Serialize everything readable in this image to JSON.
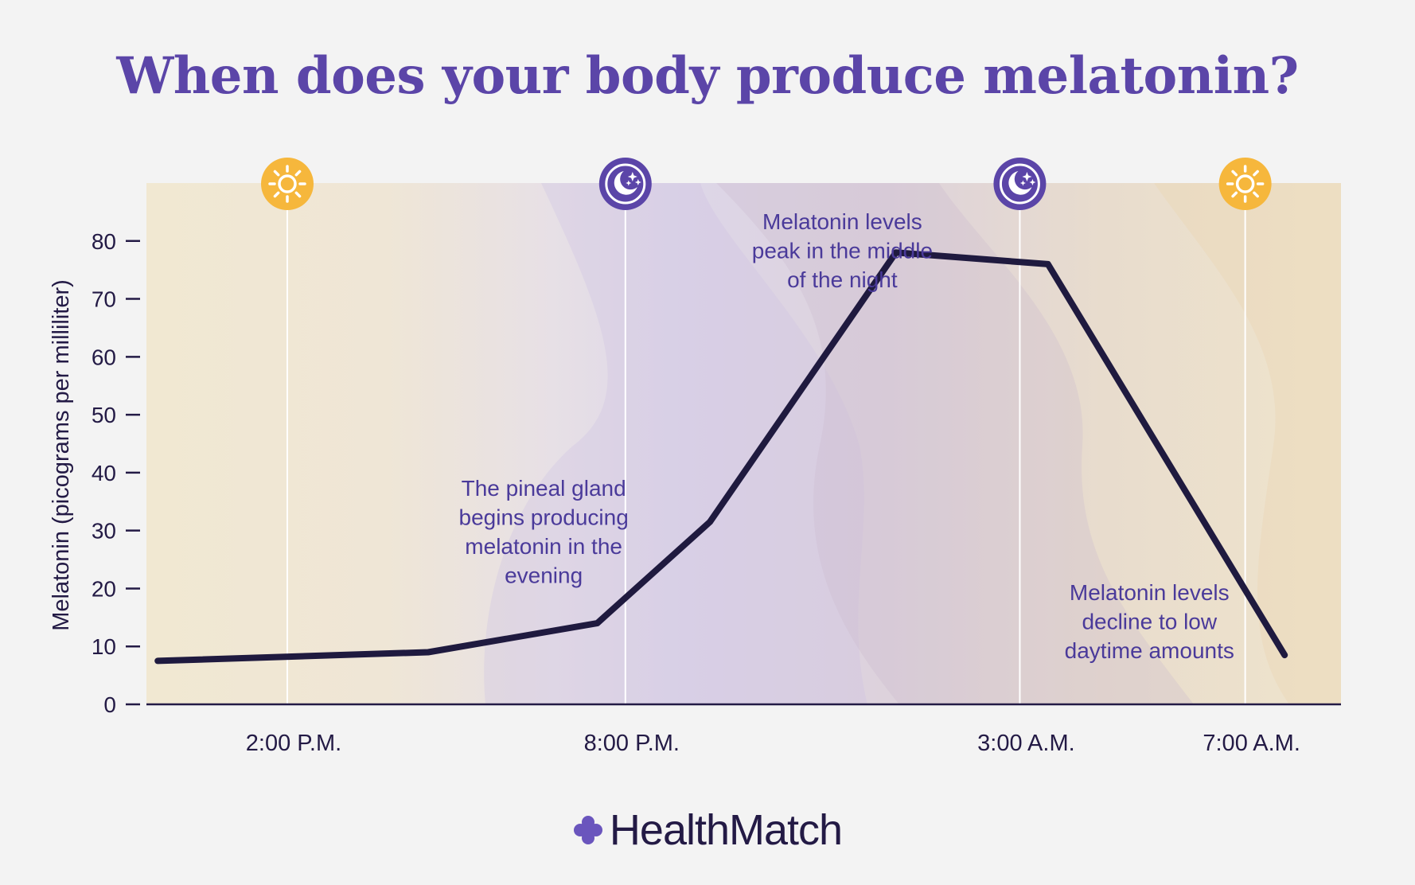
{
  "title": "When does your body produce melatonin?",
  "brand": {
    "name": "HealthMatch",
    "icon": "plus-cross-logo-icon",
    "icon_color": "#6a55bd",
    "text_color": "#231a45"
  },
  "colors": {
    "title": "#5b45a8",
    "line": "#1f1a3f",
    "axis": "#231a45",
    "annotation": "#4a3a9a",
    "sun": "#f6b73c",
    "moon": "#5b45a8",
    "panel_warm": "#f0e6d2",
    "panel_purple": "#ddd5e6"
  },
  "chart_data": {
    "type": "line",
    "title": "When does your body produce melatonin?",
    "xlabel": "",
    "ylabel": "Melatonin (picograms per milliliter)",
    "ylim": [
      0,
      90
    ],
    "yticks": [
      0,
      10,
      20,
      30,
      40,
      50,
      60,
      70,
      80
    ],
    "xlim": [
      11.5,
      32.7
    ],
    "xticks": [
      {
        "value": 14,
        "label": "2:00 P.M."
      },
      {
        "value": 20,
        "label": "8:00 P.M."
      },
      {
        "value": 27,
        "label": "3:00 A.M."
      },
      {
        "value": 31,
        "label": "7:00 A.M."
      }
    ],
    "series": [
      {
        "name": "Melatonin",
        "x": [
          11.7,
          16.5,
          19.5,
          21.5,
          24.8,
          27.5,
          31.7
        ],
        "y": [
          7.5,
          9,
          14,
          31.5,
          78,
          76,
          8.5
        ]
      }
    ],
    "markers": [
      {
        "value": 14,
        "icon": "sun-icon"
      },
      {
        "value": 20,
        "icon": "moon-stars-icon"
      },
      {
        "value": 27,
        "icon": "moon-stars-icon"
      },
      {
        "value": 31,
        "icon": "sun-icon"
      }
    ],
    "annotations": [
      {
        "name": "annotation-evening",
        "x": 18.55,
        "y": 36,
        "lines": [
          "The pineal gland",
          "begins producing",
          "melatonin in the",
          "evening"
        ]
      },
      {
        "name": "annotation-peak",
        "x": 23.85,
        "y": 82,
        "lines": [
          "Melatonin levels",
          "peak in the middle",
          "of the night"
        ]
      },
      {
        "name": "annotation-decline",
        "x": 29.3,
        "y": 18,
        "lines": [
          "Melatonin levels",
          "decline to low",
          "daytime amounts"
        ]
      }
    ]
  }
}
